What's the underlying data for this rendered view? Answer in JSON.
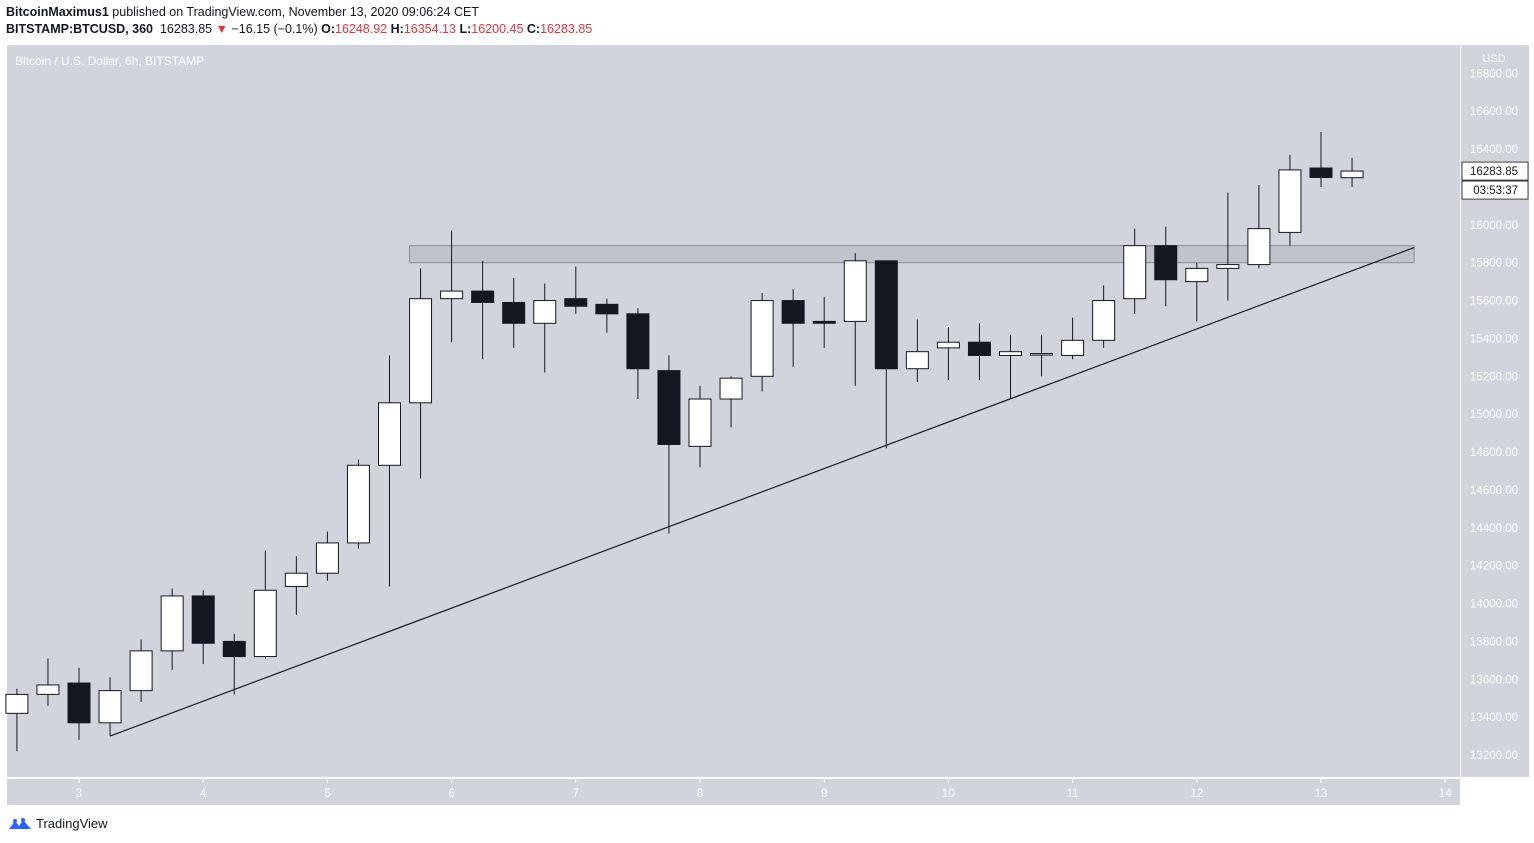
{
  "header": {
    "author": "BitcoinMaximus1",
    "published_text": "published on TradingView.com, November 13, 2020 09:06:24 CET",
    "symbol": "BITSTAMP:BTCUSD, 360",
    "last": "16283.85",
    "arrow": "▼",
    "change": "−16.15 (−0.1%)",
    "o_label": "O:",
    "o_value": "16248.92",
    "h_label": "H:",
    "h_value": "16354.13",
    "l_label": "L:",
    "l_value": "16200.45",
    "c_label": "C:",
    "c_value": "16283.85"
  },
  "chart_title": "Bitcoin / U.S. Dollar, 6h, BITSTAMP",
  "axis_currency": "USD",
  "price_label": "16283.85",
  "countdown_label": "03:53:37",
  "brand": "TradingView",
  "colors": {
    "background": "#d1d4dc",
    "up_body": "#ffffff",
    "down_body": "#131722",
    "wick": "#131722",
    "zone": "#b2b5be",
    "negative": "#e5343a"
  },
  "chart_data": {
    "type": "candlestick",
    "title": "Bitcoin / U.S. Dollar, 6h, BITSTAMP",
    "ylabel": "USD",
    "ylim": [
      13100,
      16900
    ],
    "xlim": [
      2.45,
      14.15
    ],
    "y_ticks": [
      13200,
      13400,
      13600,
      13800,
      14000,
      14200,
      14400,
      14600,
      14800,
      15000,
      15200,
      15400,
      15600,
      15800,
      16000,
      16200,
      16400,
      16600,
      16800
    ],
    "x_ticks": [
      3,
      4,
      5,
      6,
      7,
      8,
      9,
      10,
      11,
      12,
      13,
      14
    ],
    "candles": [
      {
        "t": 2.5,
        "o": 13420,
        "h": 13550,
        "l": 13220,
        "c": 13520
      },
      {
        "t": 2.75,
        "o": 13520,
        "h": 13710,
        "l": 13460,
        "c": 13570
      },
      {
        "t": 3.0,
        "o": 13580,
        "h": 13660,
        "l": 13280,
        "c": 13370
      },
      {
        "t": 3.25,
        "o": 13370,
        "h": 13610,
        "l": 13300,
        "c": 13540
      },
      {
        "t": 3.5,
        "o": 13540,
        "h": 13810,
        "l": 13480,
        "c": 13750
      },
      {
        "t": 3.75,
        "o": 13750,
        "h": 14080,
        "l": 13650,
        "c": 14040
      },
      {
        "t": 4.0,
        "o": 14040,
        "h": 14070,
        "l": 13680,
        "c": 13790
      },
      {
        "t": 4.25,
        "o": 13800,
        "h": 13840,
        "l": 13520,
        "c": 13720
      },
      {
        "t": 4.5,
        "o": 13720,
        "h": 14280,
        "l": 13710,
        "c": 14070
      },
      {
        "t": 4.75,
        "o": 14090,
        "h": 14250,
        "l": 13940,
        "c": 14160
      },
      {
        "t": 5.0,
        "o": 14160,
        "h": 14380,
        "l": 14120,
        "c": 14320
      },
      {
        "t": 5.25,
        "o": 14320,
        "h": 14760,
        "l": 14290,
        "c": 14730
      },
      {
        "t": 5.5,
        "o": 14730,
        "h": 15310,
        "l": 14090,
        "c": 15060
      },
      {
        "t": 5.75,
        "o": 15060,
        "h": 15770,
        "l": 14660,
        "c": 15610
      },
      {
        "t": 6.0,
        "o": 15610,
        "h": 15970,
        "l": 15380,
        "c": 15650
      },
      {
        "t": 6.25,
        "o": 15650,
        "h": 15810,
        "l": 15290,
        "c": 15590
      },
      {
        "t": 6.5,
        "o": 15590,
        "h": 15720,
        "l": 15350,
        "c": 15480
      },
      {
        "t": 6.75,
        "o": 15480,
        "h": 15690,
        "l": 15220,
        "c": 15600
      },
      {
        "t": 7.0,
        "o": 15610,
        "h": 15780,
        "l": 15530,
        "c": 15570
      },
      {
        "t": 7.25,
        "o": 15580,
        "h": 15610,
        "l": 15430,
        "c": 15530
      },
      {
        "t": 7.5,
        "o": 15530,
        "h": 15560,
        "l": 15080,
        "c": 15240
      },
      {
        "t": 7.75,
        "o": 15230,
        "h": 15310,
        "l": 14370,
        "c": 14840
      },
      {
        "t": 8.0,
        "o": 14830,
        "h": 15150,
        "l": 14720,
        "c": 15080
      },
      {
        "t": 8.25,
        "o": 15080,
        "h": 15200,
        "l": 14930,
        "c": 15190
      },
      {
        "t": 8.5,
        "o": 15200,
        "h": 15640,
        "l": 15120,
        "c": 15600
      },
      {
        "t": 8.75,
        "o": 15600,
        "h": 15660,
        "l": 15250,
        "c": 15480
      },
      {
        "t": 9.0,
        "o": 15490,
        "h": 15620,
        "l": 15350,
        "c": 15480
      },
      {
        "t": 9.25,
        "o": 15490,
        "h": 15850,
        "l": 15150,
        "c": 15810
      },
      {
        "t": 9.5,
        "o": 15810,
        "h": 15810,
        "l": 14820,
        "c": 15240
      },
      {
        "t": 9.75,
        "o": 15240,
        "h": 15500,
        "l": 15170,
        "c": 15330
      },
      {
        "t": 10.0,
        "o": 15350,
        "h": 15460,
        "l": 15180,
        "c": 15380
      },
      {
        "t": 10.25,
        "o": 15380,
        "h": 15480,
        "l": 15180,
        "c": 15310
      },
      {
        "t": 10.5,
        "o": 15310,
        "h": 15420,
        "l": 15080,
        "c": 15330
      },
      {
        "t": 10.75,
        "o": 15320,
        "h": 15420,
        "l": 15200,
        "c": 15320
      },
      {
        "t": 11.0,
        "o": 15310,
        "h": 15510,
        "l": 15290,
        "c": 15390
      },
      {
        "t": 11.25,
        "o": 15390,
        "h": 15680,
        "l": 15350,
        "c": 15600
      },
      {
        "t": 11.5,
        "o": 15610,
        "h": 15980,
        "l": 15530,
        "c": 15890
      },
      {
        "t": 11.75,
        "o": 15890,
        "h": 15990,
        "l": 15570,
        "c": 15710
      },
      {
        "t": 12.0,
        "o": 15700,
        "h": 15800,
        "l": 15490,
        "c": 15770
      },
      {
        "t": 12.25,
        "o": 15770,
        "h": 16170,
        "l": 15600,
        "c": 15790
      },
      {
        "t": 12.5,
        "o": 15790,
        "h": 16210,
        "l": 15770,
        "c": 15980
      },
      {
        "t": 12.75,
        "o": 15960,
        "h": 16370,
        "l": 15890,
        "c": 16290
      },
      {
        "t": 13.0,
        "o": 16300,
        "h": 16490,
        "l": 16200,
        "c": 16250
      },
      {
        "t": 13.25,
        "o": 16248.92,
        "h": 16354.13,
        "l": 16200.45,
        "c": 16283.85
      }
    ],
    "resistance_zone": {
      "x0": 5.75,
      "x1": 13.75,
      "y_low": 15800,
      "y_high": 15890
    },
    "trendline": {
      "x0": 3.25,
      "y0": 13300,
      "x1": 13.75,
      "y1": 15880
    }
  }
}
